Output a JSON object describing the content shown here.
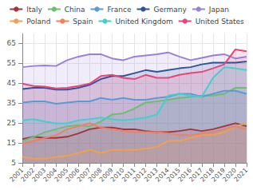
{
  "chart_data": {
    "type": "area",
    "categories": [
      "2001",
      "2002",
      "2003",
      "2004",
      "2005",
      "2006",
      "2007",
      "2008",
      "2009",
      "2010",
      "2011",
      "2012",
      "2013",
      "2014",
      "2015",
      "2016",
      "2017",
      "2018",
      "2019",
      "2020",
      "2021"
    ],
    "series": [
      {
        "name": "Italy",
        "color": "#a4343a",
        "values": [
          16.9,
          18.1,
          17.5,
          17.5,
          18.1,
          19.8,
          21.9,
          22.8,
          22.8,
          21.9,
          21.9,
          21.0,
          20.4,
          20.4,
          21.0,
          21.9,
          21.0,
          21.9,
          23.4,
          24.9,
          23.4
        ]
      },
      {
        "name": "China",
        "color": "#6cbf6c",
        "values": [
          16.0,
          18.1,
          20.4,
          21.9,
          23.4,
          24.0,
          23.4,
          25.8,
          29.3,
          29.9,
          32.3,
          35.3,
          35.9,
          36.7,
          37.6,
          38.2,
          38.8,
          38.8,
          39.7,
          42.7,
          42.7
        ]
      },
      {
        "name": "France",
        "color": "#5b9bd5",
        "values": [
          35.3,
          35.9,
          35.9,
          34.7,
          35.3,
          35.9,
          35.9,
          37.6,
          36.7,
          37.6,
          36.7,
          36.7,
          37.6,
          38.2,
          39.7,
          39.7,
          38.2,
          39.7,
          41.2,
          41.2,
          39.7
        ]
      },
      {
        "name": "Germany",
        "color": "#2f5597",
        "values": [
          42.1,
          42.7,
          42.7,
          41.8,
          41.8,
          42.7,
          44.2,
          47.1,
          48.6,
          48.6,
          50.1,
          51.6,
          50.7,
          51.6,
          52.5,
          53.1,
          54.5,
          55.4,
          55.4,
          55.4,
          56.0
        ]
      },
      {
        "name": "Japan",
        "color": "#9b7fd4",
        "values": [
          53.1,
          53.7,
          54.0,
          53.7,
          56.6,
          58.4,
          59.6,
          59.6,
          57.5,
          56.6,
          58.4,
          59.0,
          59.6,
          60.5,
          58.4,
          56.6,
          57.8,
          59.0,
          59.6,
          57.5,
          58.4
        ]
      },
      {
        "name": "Poland",
        "color": "#f0a050",
        "values": [
          8.0,
          7.1,
          7.1,
          8.0,
          8.6,
          10.0,
          11.5,
          10.0,
          11.5,
          11.5,
          11.5,
          12.1,
          13.0,
          16.0,
          16.0,
          17.5,
          18.9,
          18.9,
          20.4,
          23.4,
          24.9
        ]
      },
      {
        "name": "Spain",
        "color": "#f08060",
        "values": [
          14.5,
          16.0,
          17.5,
          18.9,
          21.9,
          23.4,
          24.9,
          22.8,
          21.9,
          21.0,
          20.4,
          20.4,
          20.4,
          19.8,
          18.9,
          18.9,
          19.8,
          20.4,
          21.9,
          23.4,
          21.9
        ]
      },
      {
        "name": "United Kingdom",
        "color": "#40d0d0",
        "values": [
          26.4,
          27.0,
          25.8,
          24.9,
          24.9,
          26.4,
          27.0,
          27.8,
          27.0,
          26.4,
          27.0,
          27.8,
          29.3,
          38.8,
          39.7,
          38.8,
          38.2,
          47.7,
          53.1,
          52.5,
          51.6
        ]
      },
      {
        "name": "United States",
        "color": "#e8457a",
        "values": [
          44.8,
          43.6,
          43.3,
          42.4,
          42.7,
          43.6,
          44.8,
          48.6,
          49.2,
          47.7,
          47.1,
          49.2,
          47.7,
          47.7,
          49.2,
          50.1,
          50.7,
          52.5,
          54.5,
          62.0,
          61.1
        ]
      }
    ],
    "ylim": [
      5,
      70
    ],
    "yticks": [
      5,
      15,
      25,
      35,
      45,
      55,
      65
    ],
    "grid": true,
    "legend": "top"
  }
}
